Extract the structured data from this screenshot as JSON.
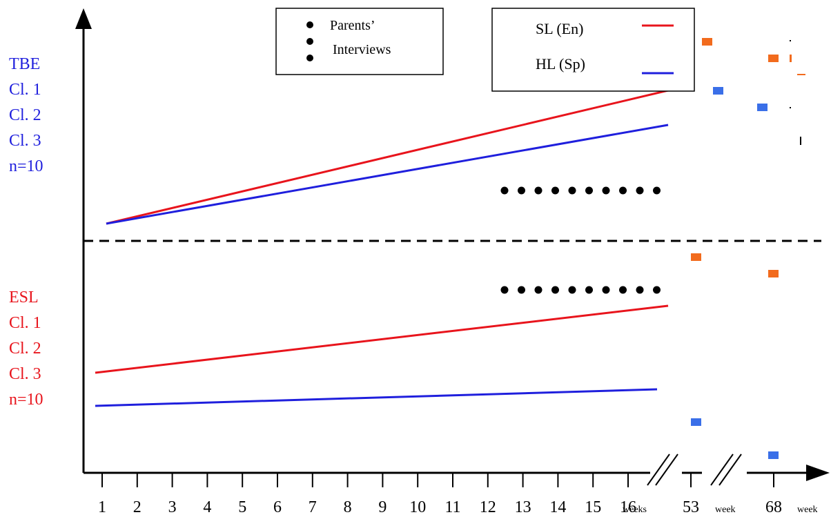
{
  "groups": {
    "tbe": {
      "lines": [
        "TBE",
        "Cl. 1",
        "Cl. 2",
        "Cl. 3",
        "n=10"
      ],
      "color": "#1f1fdd"
    },
    "esl": {
      "lines": [
        "ESL",
        "Cl. 1",
        "Cl. 2",
        "Cl. 3",
        "n=10"
      ],
      "color": "#e8141c"
    }
  },
  "legend_interviews": {
    "line1": "Parents’",
    "line2": "Interviews"
  },
  "legend_series": {
    "sl": {
      "label": "SL (En)",
      "color": "#e8141c"
    },
    "hl": {
      "label": "HL (Sp)",
      "color": "#1f1fdd"
    }
  },
  "marker_colors": {
    "orange": "#f26b1d",
    "blue": "#3a6fe8"
  },
  "x_axis": {
    "ticks": [
      "1",
      "2",
      "3",
      "4",
      "5",
      "6",
      "7",
      "8",
      "9",
      "10",
      "11",
      "12",
      "13",
      "14",
      "15",
      "16"
    ],
    "weeks_unit": "weeks",
    "late_ticks": [
      {
        "value": "53",
        "unit": "week"
      },
      {
        "value": "68",
        "unit": "week"
      }
    ]
  }
}
